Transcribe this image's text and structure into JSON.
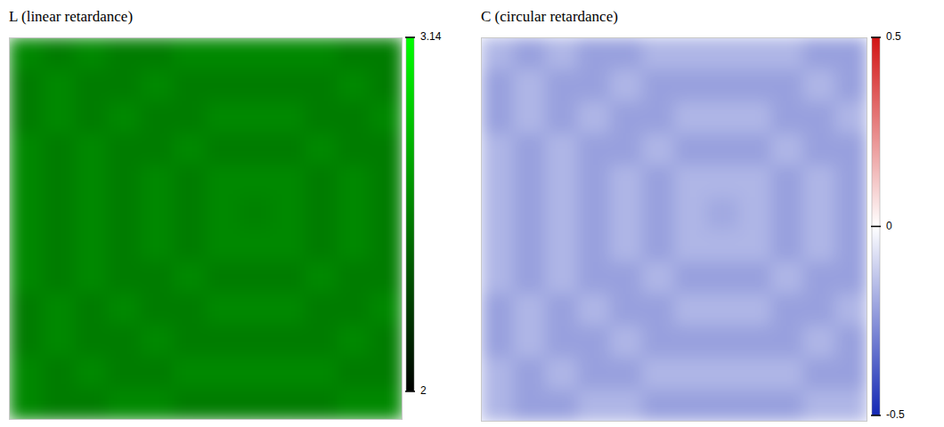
{
  "chart_data": [
    {
      "type": "heatmap",
      "title": "L (linear retardance)",
      "tick_labels": false,
      "color": [
        "#000000",
        "#00ff00"
      ],
      "zlim": [
        2,
        3.14
      ],
      "zticks": [
        2,
        3.14
      ],
      "cells": [
        [
          2.61,
          2.55,
          2.61,
          2.55,
          2.55,
          2.61,
          2.61,
          2.61,
          2.61,
          2.61,
          2.55,
          2.55
        ],
        [
          2.55,
          2.61,
          2.55,
          2.55,
          2.61,
          2.55,
          2.55,
          2.55,
          2.55,
          2.55,
          2.61,
          2.55
        ],
        [
          2.55,
          2.61,
          2.55,
          2.61,
          2.55,
          2.55,
          2.61,
          2.61,
          2.61,
          2.55,
          2.55,
          2.61
        ],
        [
          2.61,
          2.55,
          2.61,
          2.55,
          2.55,
          2.61,
          2.55,
          2.55,
          2.55,
          2.61,
          2.55,
          2.55
        ],
        [
          2.61,
          2.55,
          2.61,
          2.55,
          2.61,
          2.55,
          2.61,
          2.61,
          2.61,
          2.55,
          2.61,
          2.55
        ],
        [
          2.61,
          2.55,
          2.61,
          2.55,
          2.61,
          2.55,
          2.61,
          2.58,
          2.61,
          2.55,
          2.61,
          2.55
        ],
        [
          2.61,
          2.55,
          2.61,
          2.55,
          2.61,
          2.55,
          2.61,
          2.61,
          2.61,
          2.55,
          2.61,
          2.55
        ],
        [
          2.61,
          2.55,
          2.61,
          2.55,
          2.55,
          2.61,
          2.55,
          2.55,
          2.55,
          2.61,
          2.55,
          2.55
        ],
        [
          2.55,
          2.61,
          2.55,
          2.61,
          2.55,
          2.55,
          2.61,
          2.61,
          2.61,
          2.55,
          2.55,
          2.61
        ],
        [
          2.55,
          2.61,
          2.55,
          2.55,
          2.61,
          2.55,
          2.55,
          2.55,
          2.55,
          2.55,
          2.61,
          2.55
        ],
        [
          2.61,
          2.55,
          2.61,
          2.55,
          2.55,
          2.61,
          2.61,
          2.61,
          2.61,
          2.61,
          2.55,
          2.55
        ],
        [
          2.61,
          2.55,
          2.55,
          2.61,
          2.61,
          2.55,
          2.55,
          2.55,
          2.55,
          2.55,
          2.61,
          2.61
        ]
      ]
    },
    {
      "type": "heatmap",
      "title": "C (circular retardance)",
      "tick_labels": false,
      "color": [
        "#1428b4",
        "#ffffff",
        "#d21414"
      ],
      "zlim": [
        -0.5,
        0.5
      ],
      "zticks": [
        -0.5,
        0,
        0.5
      ],
      "cells": [
        [
          -0.17,
          -0.22,
          -0.17,
          -0.22,
          -0.22,
          -0.17,
          -0.17,
          -0.17,
          -0.17,
          -0.17,
          -0.22,
          -0.22
        ],
        [
          -0.22,
          -0.17,
          -0.22,
          -0.22,
          -0.17,
          -0.22,
          -0.22,
          -0.22,
          -0.22,
          -0.22,
          -0.17,
          -0.22
        ],
        [
          -0.22,
          -0.17,
          -0.22,
          -0.17,
          -0.22,
          -0.22,
          -0.17,
          -0.17,
          -0.17,
          -0.22,
          -0.22,
          -0.17
        ],
        [
          -0.17,
          -0.22,
          -0.17,
          -0.22,
          -0.22,
          -0.17,
          -0.22,
          -0.22,
          -0.22,
          -0.17,
          -0.22,
          -0.22
        ],
        [
          -0.17,
          -0.22,
          -0.17,
          -0.22,
          -0.17,
          -0.22,
          -0.17,
          -0.17,
          -0.17,
          -0.22,
          -0.17,
          -0.22
        ],
        [
          -0.17,
          -0.22,
          -0.17,
          -0.22,
          -0.17,
          -0.22,
          -0.17,
          -0.2,
          -0.17,
          -0.22,
          -0.17,
          -0.22
        ],
        [
          -0.17,
          -0.22,
          -0.17,
          -0.22,
          -0.17,
          -0.22,
          -0.17,
          -0.17,
          -0.17,
          -0.22,
          -0.17,
          -0.22
        ],
        [
          -0.17,
          -0.22,
          -0.17,
          -0.22,
          -0.22,
          -0.17,
          -0.22,
          -0.22,
          -0.22,
          -0.17,
          -0.22,
          -0.22
        ],
        [
          -0.22,
          -0.17,
          -0.22,
          -0.17,
          -0.22,
          -0.22,
          -0.17,
          -0.17,
          -0.17,
          -0.22,
          -0.22,
          -0.17
        ],
        [
          -0.22,
          -0.17,
          -0.22,
          -0.22,
          -0.17,
          -0.22,
          -0.22,
          -0.22,
          -0.22,
          -0.22,
          -0.17,
          -0.22
        ],
        [
          -0.17,
          -0.22,
          -0.17,
          -0.22,
          -0.22,
          -0.17,
          -0.17,
          -0.17,
          -0.17,
          -0.17,
          -0.22,
          -0.22
        ],
        [
          -0.17,
          -0.22,
          -0.22,
          -0.17,
          -0.17,
          -0.22,
          -0.22,
          -0.22,
          -0.22,
          -0.22,
          -0.17,
          -0.17
        ]
      ]
    }
  ]
}
